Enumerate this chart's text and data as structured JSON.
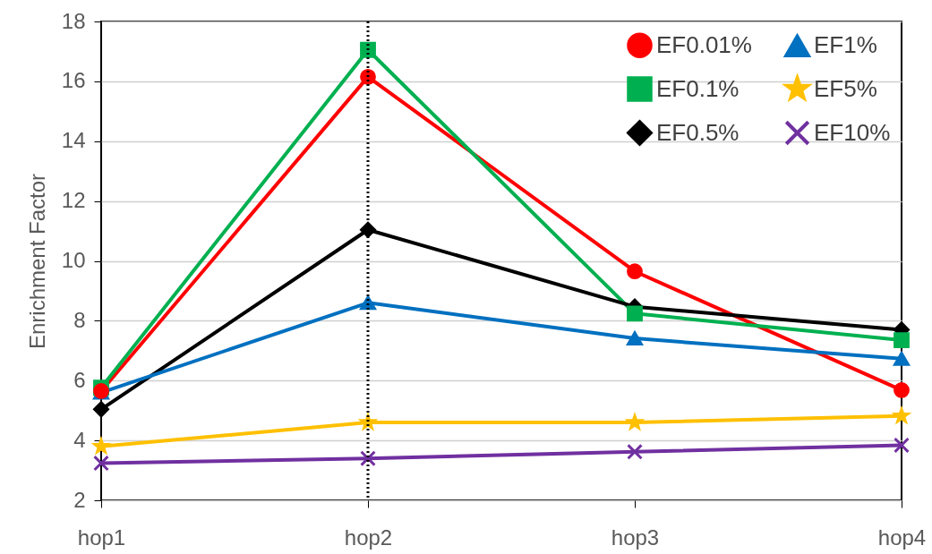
{
  "chart_data": {
    "type": "line",
    "ylabel": "Enrichment Factor",
    "categories": [
      "hop1",
      "hop2",
      "hop3",
      "hop4"
    ],
    "series": [
      {
        "name": "EF0.01%",
        "color": "#ff0000",
        "marker": "circle",
        "values": [
          5.65,
          16.15,
          9.65,
          5.68
        ]
      },
      {
        "name": "EF0.1%",
        "color": "#00b050",
        "marker": "square",
        "values": [
          5.76,
          17.05,
          8.24,
          7.35
        ]
      },
      {
        "name": "EF0.5%",
        "color": "#000000",
        "marker": "diamond",
        "values": [
          5.04,
          11.04,
          8.47,
          7.7
        ]
      },
      {
        "name": "EF1%",
        "color": "#0070c0",
        "marker": "triangle",
        "values": [
          5.6,
          8.6,
          7.41,
          6.73
        ]
      },
      {
        "name": "EF5%",
        "color": "#ffc000",
        "marker": "star",
        "values": [
          3.8,
          4.6,
          4.6,
          4.82
        ]
      },
      {
        "name": "EF10%",
        "color": "#7030a0",
        "marker": "cross",
        "values": [
          3.24,
          3.4,
          3.62,
          3.84
        ]
      }
    ],
    "ylim": [
      2,
      18
    ],
    "yticks": [
      2,
      4,
      6,
      8,
      10,
      12,
      14,
      16,
      18
    ],
    "grid": "y",
    "legend": "top right",
    "ref_lines": [
      {
        "axis": "x",
        "value": "hop2",
        "color": "#000000",
        "line_style": "dotted"
      }
    ]
  }
}
